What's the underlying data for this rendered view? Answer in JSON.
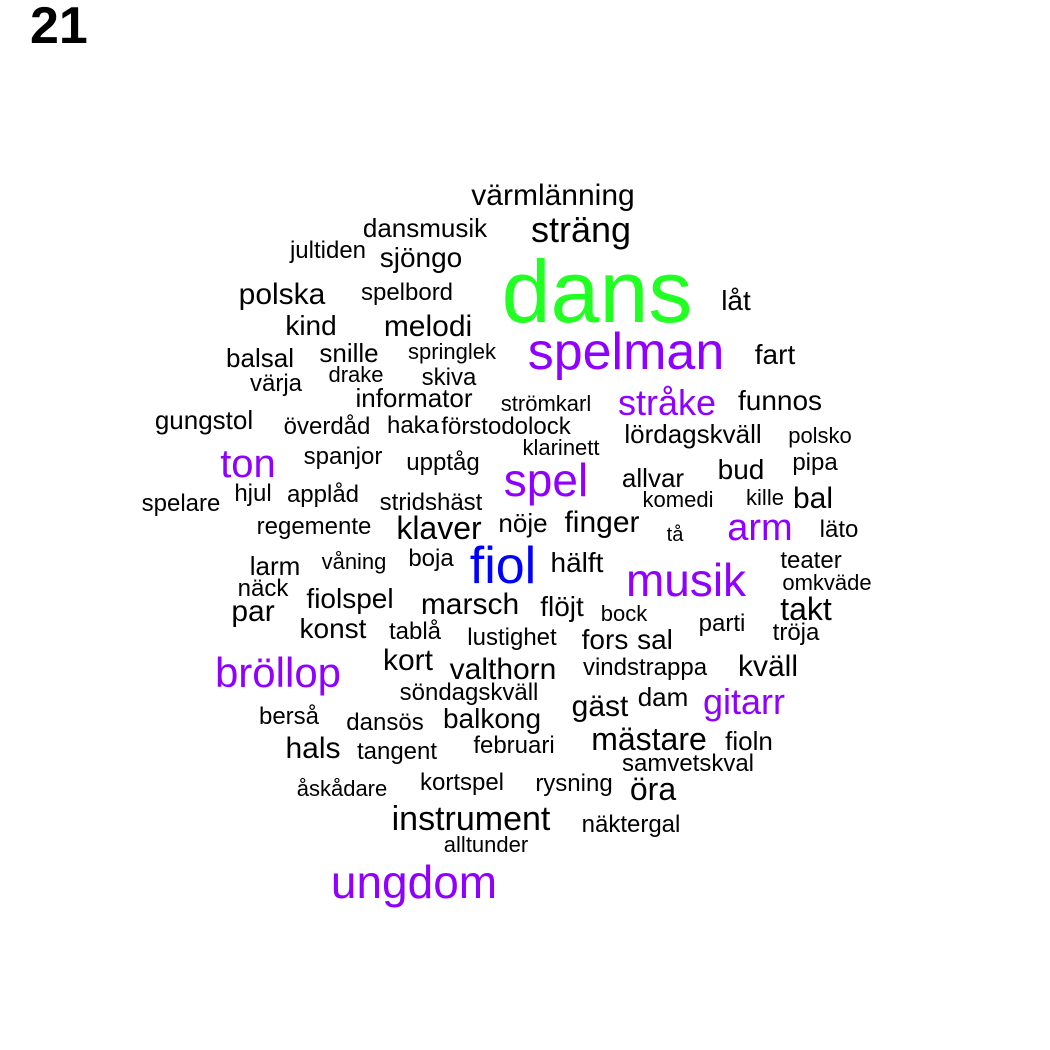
{
  "page_number": "21",
  "colors": {
    "default": "#000000",
    "accent_purple": "#8f00ff",
    "accent_blue": "#0000ff",
    "accent_green": "#22ff22"
  },
  "words": [
    {
      "text": "dans",
      "tier": "green"
    },
    {
      "text": "spelman",
      "tier": "purple"
    },
    {
      "text": "fiol",
      "tier": "blue"
    },
    {
      "text": "musik",
      "tier": "purple"
    },
    {
      "text": "spel",
      "tier": "purple"
    },
    {
      "text": "bröllop",
      "tier": "purple"
    },
    {
      "text": "ungdom",
      "tier": "purple"
    },
    {
      "text": "ton",
      "tier": "purple"
    },
    {
      "text": "arm",
      "tier": "purple"
    },
    {
      "text": "stråke",
      "tier": "purple"
    },
    {
      "text": "gitarr",
      "tier": "purple"
    },
    {
      "text": "värmlänning",
      "tier": "black"
    },
    {
      "text": "sträng",
      "tier": "black"
    },
    {
      "text": "dansmusik",
      "tier": "black"
    },
    {
      "text": "jultiden",
      "tier": "black"
    },
    {
      "text": "sjöngo",
      "tier": "black"
    },
    {
      "text": "polska",
      "tier": "black"
    },
    {
      "text": "spelbord",
      "tier": "black"
    },
    {
      "text": "låt",
      "tier": "black"
    },
    {
      "text": "kind",
      "tier": "black"
    },
    {
      "text": "melodi",
      "tier": "black"
    },
    {
      "text": "balsal",
      "tier": "black"
    },
    {
      "text": "snille",
      "tier": "black"
    },
    {
      "text": "springlek",
      "tier": "black"
    },
    {
      "text": "fart",
      "tier": "black"
    },
    {
      "text": "värja",
      "tier": "black"
    },
    {
      "text": "drake",
      "tier": "black"
    },
    {
      "text": "skiva",
      "tier": "black"
    },
    {
      "text": "informator",
      "tier": "black"
    },
    {
      "text": "strömkarl",
      "tier": "black"
    },
    {
      "text": "funnos",
      "tier": "black"
    },
    {
      "text": "gungstol",
      "tier": "black"
    },
    {
      "text": "överdåd",
      "tier": "black"
    },
    {
      "text": "haka",
      "tier": "black"
    },
    {
      "text": "förstodolock",
      "tier": "black"
    },
    {
      "text": "klarinett",
      "tier": "black"
    },
    {
      "text": "lördagskväll",
      "tier": "black"
    },
    {
      "text": "polsko",
      "tier": "black"
    },
    {
      "text": "spanjor",
      "tier": "black"
    },
    {
      "text": "upptåg",
      "tier": "black"
    },
    {
      "text": "allvar",
      "tier": "black"
    },
    {
      "text": "bud",
      "tier": "black"
    },
    {
      "text": "pipa",
      "tier": "black"
    },
    {
      "text": "spelare",
      "tier": "black"
    },
    {
      "text": "hjul",
      "tier": "black"
    },
    {
      "text": "applåd",
      "tier": "black"
    },
    {
      "text": "stridshäst",
      "tier": "black"
    },
    {
      "text": "komedi",
      "tier": "black"
    },
    {
      "text": "kille",
      "tier": "black"
    },
    {
      "text": "bal",
      "tier": "black"
    },
    {
      "text": "regemente",
      "tier": "black"
    },
    {
      "text": "klaver",
      "tier": "black"
    },
    {
      "text": "nöje",
      "tier": "black"
    },
    {
      "text": "finger",
      "tier": "black"
    },
    {
      "text": "tå",
      "tier": "black"
    },
    {
      "text": "läto",
      "tier": "black"
    },
    {
      "text": "larm",
      "tier": "black"
    },
    {
      "text": "våning",
      "tier": "black"
    },
    {
      "text": "boja",
      "tier": "black"
    },
    {
      "text": "hälft",
      "tier": "black"
    },
    {
      "text": "teater",
      "tier": "black"
    },
    {
      "text": "omkväde",
      "tier": "black"
    },
    {
      "text": "näck",
      "tier": "black"
    },
    {
      "text": "fiolspel",
      "tier": "black"
    },
    {
      "text": "marsch",
      "tier": "black"
    },
    {
      "text": "flöjt",
      "tier": "black"
    },
    {
      "text": "bock",
      "tier": "black"
    },
    {
      "text": "takt",
      "tier": "black"
    },
    {
      "text": "par",
      "tier": "black"
    },
    {
      "text": "konst",
      "tier": "black"
    },
    {
      "text": "tablå",
      "tier": "black"
    },
    {
      "text": "lustighet",
      "tier": "black"
    },
    {
      "text": "fors",
      "tier": "black"
    },
    {
      "text": "sal",
      "tier": "black"
    },
    {
      "text": "parti",
      "tier": "black"
    },
    {
      "text": "tröja",
      "tier": "black"
    },
    {
      "text": "kort",
      "tier": "black"
    },
    {
      "text": "valthorn",
      "tier": "black"
    },
    {
      "text": "vindstrappa",
      "tier": "black"
    },
    {
      "text": "kväll",
      "tier": "black"
    },
    {
      "text": "söndagskväll",
      "tier": "black"
    },
    {
      "text": "dam",
      "tier": "black"
    },
    {
      "text": "gäst",
      "tier": "black"
    },
    {
      "text": "berså",
      "tier": "black"
    },
    {
      "text": "dansös",
      "tier": "black"
    },
    {
      "text": "balkong",
      "tier": "black"
    },
    {
      "text": "hals",
      "tier": "black"
    },
    {
      "text": "tangent",
      "tier": "black"
    },
    {
      "text": "februari",
      "tier": "black"
    },
    {
      "text": "mästare",
      "tier": "black"
    },
    {
      "text": "fioln",
      "tier": "black"
    },
    {
      "text": "samvetskval",
      "tier": "black"
    },
    {
      "text": "åskådare",
      "tier": "black"
    },
    {
      "text": "kortspel",
      "tier": "black"
    },
    {
      "text": "rysning",
      "tier": "black"
    },
    {
      "text": "öra",
      "tier": "black"
    },
    {
      "text": "instrument",
      "tier": "black"
    },
    {
      "text": "näktergal",
      "tier": "black"
    },
    {
      "text": "alltunder",
      "tier": "black"
    }
  ]
}
